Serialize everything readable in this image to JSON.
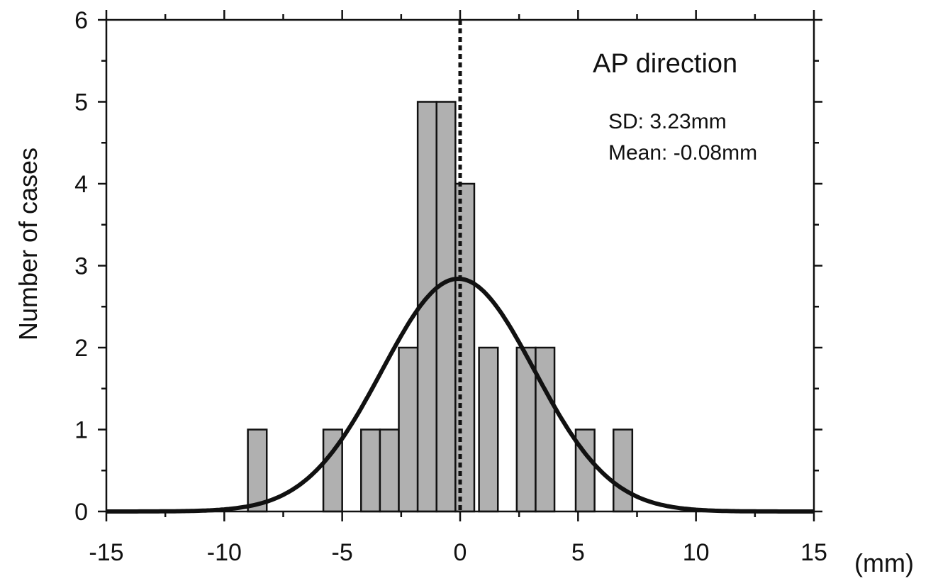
{
  "chart_data": {
    "type": "bar",
    "title": "",
    "xlabel": "",
    "ylabel": "Number of cases",
    "x_unit_label": "(mm)",
    "xlim": [
      -15,
      15
    ],
    "ylim": [
      0,
      6
    ],
    "x_ticks": [
      -15,
      -10,
      -5,
      0,
      5,
      10,
      15
    ],
    "y_ticks": [
      0,
      1,
      2,
      3,
      4,
      5,
      6
    ],
    "grid": false,
    "bin_width": 0.8,
    "bins": [
      {
        "x0": -9.0,
        "x1": -8.2,
        "count": 1
      },
      {
        "x0": -5.8,
        "x1": -5.0,
        "count": 1
      },
      {
        "x0": -4.2,
        "x1": -3.4,
        "count": 1
      },
      {
        "x0": -3.4,
        "x1": -2.6,
        "count": 1
      },
      {
        "x0": -2.6,
        "x1": -1.8,
        "count": 2
      },
      {
        "x0": -1.8,
        "x1": -1.0,
        "count": 5
      },
      {
        "x0": -1.0,
        "x1": -0.2,
        "count": 5
      },
      {
        "x0": -0.2,
        "x1": 0.6,
        "count": 4
      },
      {
        "x0": 0.8,
        "x1": 1.6,
        "count": 2
      },
      {
        "x0": 2.4,
        "x1": 3.2,
        "count": 2
      },
      {
        "x0": 3.2,
        "x1": 4.0,
        "count": 2
      },
      {
        "x0": 4.9,
        "x1": 5.7,
        "count": 1
      },
      {
        "x0": 6.5,
        "x1": 7.3,
        "count": 1
      }
    ],
    "fit_curve": {
      "type": "normal",
      "mean": -0.08,
      "sd": 3.23,
      "peak": 2.84
    },
    "mean_line_x": 0,
    "annotations": {
      "direction": "AP direction",
      "sd": "SD: 3.23mm",
      "mean": "Mean: -0.08mm"
    }
  }
}
